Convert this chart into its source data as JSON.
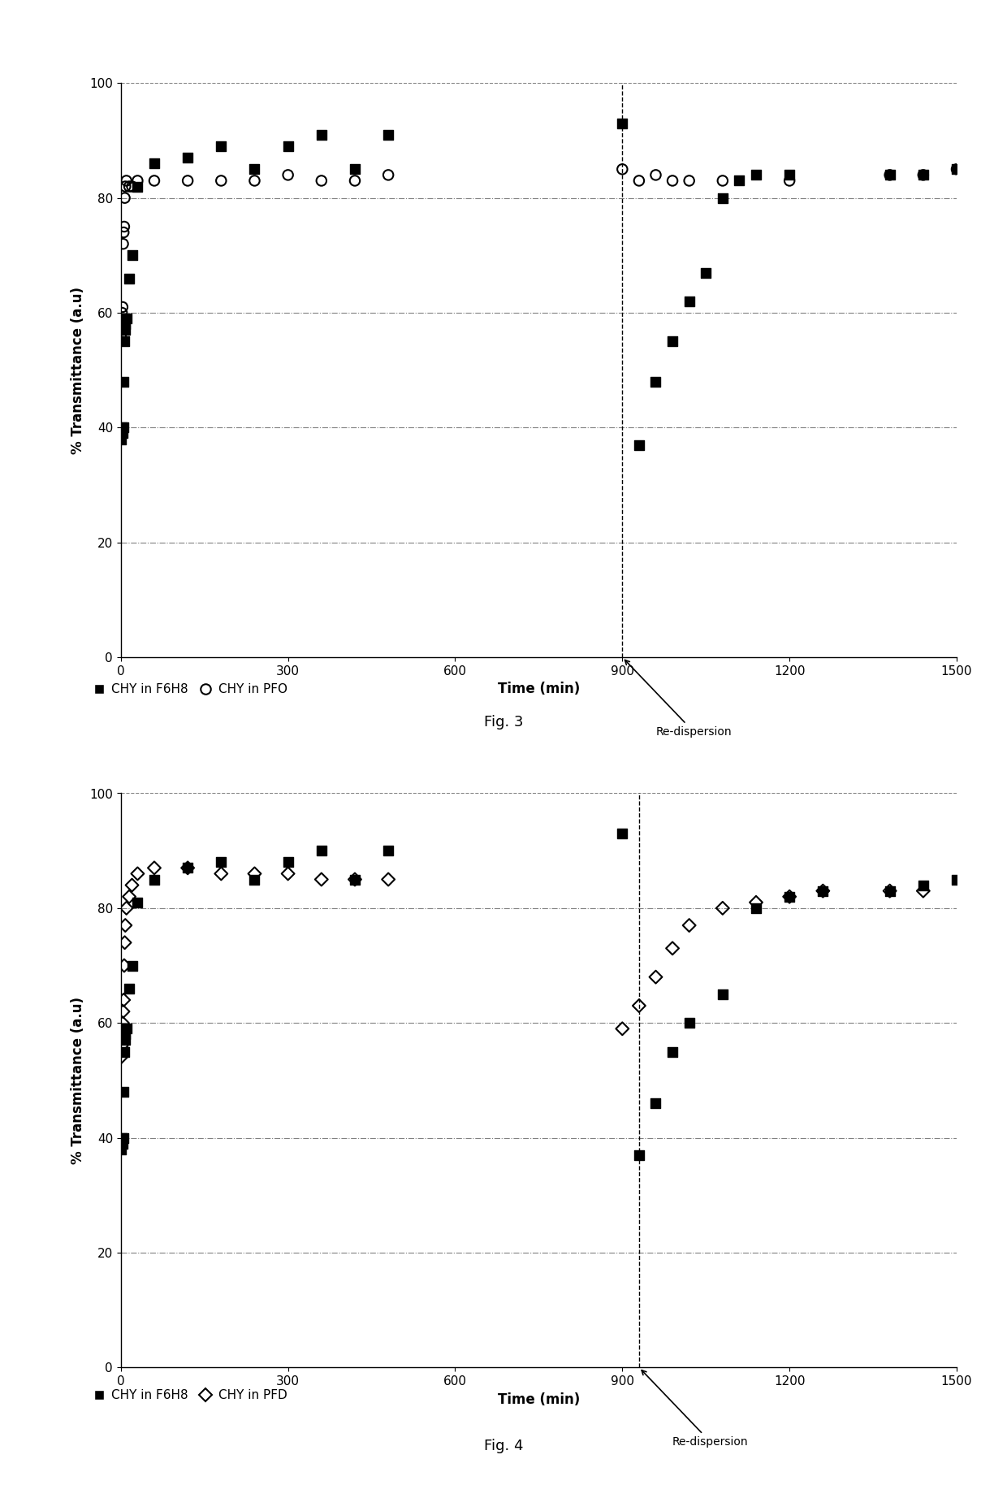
{
  "fig3": {
    "chy_f6h8_x": [
      0,
      1,
      2,
      3,
      4,
      5,
      6,
      7,
      8,
      10,
      15,
      20,
      30,
      60,
      120,
      180,
      240,
      300,
      360,
      420,
      480,
      900,
      930,
      960,
      990,
      1020,
      1050,
      1080,
      1110,
      1140,
      1200,
      1380,
      1440,
      1500
    ],
    "chy_f6h8_y": [
      39,
      38,
      40,
      39,
      40,
      48,
      55,
      57,
      58,
      59,
      66,
      70,
      82,
      86,
      87,
      89,
      85,
      89,
      91,
      85,
      91,
      93,
      37,
      48,
      55,
      62,
      67,
      80,
      83,
      84,
      84,
      84,
      84,
      85
    ],
    "chy_pfo_x": [
      0,
      1,
      2,
      3,
      4,
      5,
      6,
      7,
      8,
      10,
      15,
      20,
      30,
      60,
      120,
      180,
      240,
      300,
      360,
      420,
      480,
      900,
      930,
      960,
      990,
      1020,
      1080,
      1200,
      1380,
      1440,
      1500
    ],
    "chy_pfo_y": [
      56,
      57,
      60,
      61,
      72,
      74,
      75,
      80,
      82,
      83,
      82,
      82,
      83,
      83,
      83,
      83,
      83,
      84,
      83,
      83,
      84,
      85,
      83,
      84,
      83,
      83,
      83,
      83,
      84,
      84,
      85
    ],
    "redispersion_x": 900,
    "xlabel": "Time (min)",
    "ylabel": "% Transmittance (a.u",
    "xlim": [
      0,
      1500
    ],
    "ylim": [
      0,
      100
    ],
    "xticks": [
      0,
      300,
      600,
      900,
      1200,
      1500
    ],
    "yticks": [
      0,
      20,
      40,
      60,
      80,
      100
    ],
    "legend1": "CHY in F6H8",
    "legend2": "CHY in PFO",
    "figcaption": "Fig. 3"
  },
  "fig4": {
    "chy_f6h8_x": [
      0,
      1,
      2,
      3,
      4,
      5,
      6,
      7,
      8,
      10,
      15,
      20,
      30,
      60,
      120,
      180,
      240,
      300,
      360,
      420,
      480,
      900,
      930,
      960,
      990,
      1020,
      1080,
      1140,
      1200,
      1260,
      1380,
      1440,
      1500
    ],
    "chy_f6h8_y": [
      39,
      38,
      40,
      39,
      40,
      48,
      55,
      57,
      58,
      59,
      66,
      70,
      81,
      85,
      87,
      88,
      85,
      88,
      90,
      85,
      90,
      93,
      37,
      46,
      55,
      60,
      65,
      80,
      82,
      83,
      83,
      84,
      85
    ],
    "chy_pfd_x": [
      0,
      1,
      2,
      3,
      4,
      5,
      6,
      7,
      8,
      10,
      15,
      20,
      30,
      60,
      120,
      180,
      240,
      300,
      360,
      420,
      480,
      900,
      930,
      960,
      990,
      1020,
      1080,
      1140,
      1200,
      1260,
      1380,
      1440
    ],
    "chy_pfd_y": [
      54,
      56,
      58,
      60,
      62,
      64,
      70,
      74,
      77,
      80,
      82,
      84,
      86,
      87,
      87,
      86,
      86,
      86,
      85,
      85,
      85,
      59,
      63,
      68,
      73,
      77,
      80,
      81,
      82,
      83,
      83,
      83
    ],
    "redispersion_x": 930,
    "xlabel": "Time (min)",
    "ylabel": "% Transmittance (a.u",
    "xlim": [
      0,
      1500
    ],
    "ylim": [
      0,
      100
    ],
    "xticks": [
      0,
      300,
      600,
      900,
      1200,
      1500
    ],
    "yticks": [
      0,
      20,
      40,
      60,
      80,
      100
    ],
    "legend1": "CHY in F6H8",
    "legend2": "CHY in PFD",
    "figcaption": "Fig. 4"
  }
}
